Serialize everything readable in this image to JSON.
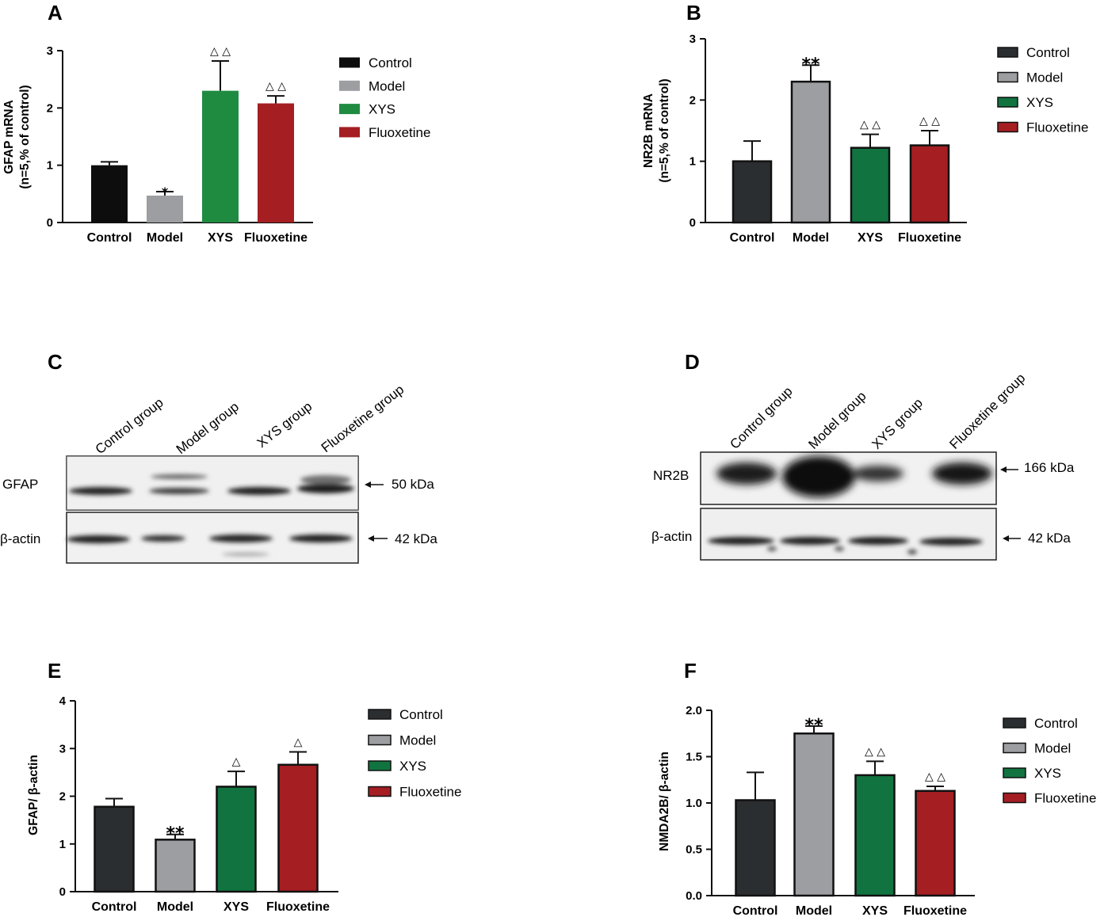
{
  "chart_data": [
    {
      "panel": "A",
      "type": "bar",
      "categories": [
        "Control",
        "Model",
        "XYS",
        "Fluoxetine"
      ],
      "values": [
        1.0,
        0.47,
        2.3,
        2.08
      ],
      "errors": [
        0.06,
        0.07,
        0.52,
        0.13
      ],
      "annotations": [
        "",
        "*",
        "△ △",
        "△ △"
      ],
      "colors": [
        "#0d0d0d",
        "#9d9ea1",
        "#1f8b41",
        "#a51e22"
      ],
      "legend": [
        "Control",
        "Model",
        "XYS",
        "Fluoxetine"
      ],
      "ylabel": [
        "GFAP mRNA",
        "(n=5,% of control)"
      ],
      "ylim": [
        0,
        3
      ],
      "yticks": [
        "0",
        "1",
        "2",
        "3"
      ],
      "yticks_values": [
        0,
        1,
        2,
        3
      ]
    },
    {
      "panel": "B",
      "type": "bar",
      "categories": [
        "Control",
        "Model",
        "XYS",
        "Fluoxetine"
      ],
      "values": [
        1.0,
        2.3,
        1.22,
        1.26
      ],
      "errors": [
        0.33,
        0.27,
        0.22,
        0.24
      ],
      "annotations": [
        "",
        "**",
        "△ △",
        "△ △"
      ],
      "colors": [
        "#2b2e31",
        "#9d9ea1",
        "#117440",
        "#a51e22"
      ],
      "legend": [
        "Control",
        "Model",
        "XYS",
        "Fluoxetine"
      ],
      "ylabel": [
        "NR2B mRNA",
        "(n=5,% of control)"
      ],
      "ylim": [
        0,
        3
      ],
      "yticks": [
        "0",
        "1",
        "2",
        "3"
      ],
      "yticks_values": [
        0,
        1,
        2,
        3
      ]
    },
    {
      "panel": "E",
      "type": "bar",
      "categories": [
        "Control",
        "Model",
        "XYS",
        "Fluoxetine"
      ],
      "values": [
        1.78,
        1.09,
        2.2,
        2.66
      ],
      "errors": [
        0.17,
        0.11,
        0.32,
        0.27
      ],
      "annotations": [
        "",
        "**",
        "△",
        "△"
      ],
      "colors": [
        "#2b2e31",
        "#9d9ea1",
        "#117440",
        "#a51e22"
      ],
      "legend": [
        "Control",
        "Model",
        "XYS",
        "Fluoxetine"
      ],
      "ylabel": [
        "GFAP/ β-actin"
      ],
      "ylim": [
        0,
        4
      ],
      "yticks": [
        "0",
        "1",
        "2",
        "3",
        "4"
      ],
      "yticks_values": [
        0,
        1,
        2,
        3,
        4
      ]
    },
    {
      "panel": "F",
      "type": "bar",
      "categories": [
        "Control",
        "Model",
        "XYS",
        "Fluoxetine"
      ],
      "values": [
        1.03,
        1.75,
        1.3,
        1.13
      ],
      "errors": [
        0.3,
        0.08,
        0.15,
        0.05
      ],
      "annotations": [
        "",
        "**",
        "△ △",
        "△ △"
      ],
      "colors": [
        "#2b2e31",
        "#9d9ea1",
        "#117440",
        "#a51e22"
      ],
      "legend": [
        "Control",
        "Model",
        "XYS",
        "Fluoxetine"
      ],
      "ylabel": [
        "NMDA2B/ β-actin"
      ],
      "ylim": [
        0,
        2.0
      ],
      "yticks": [
        "0.0",
        "0.5",
        "1.0",
        "1.5",
        "2.0"
      ],
      "yticks_values": [
        0,
        0.5,
        1.0,
        1.5,
        2.0
      ]
    }
  ],
  "blots": [
    {
      "panel": "C",
      "lanes": [
        "Control group",
        "Model group",
        "XYS group",
        "Fluoxetine group"
      ],
      "rows": [
        {
          "label": "GFAP",
          "marker": "50 kDa"
        },
        {
          "label": "β-actin",
          "marker": "42 kDa"
        }
      ]
    },
    {
      "panel": "D",
      "lanes": [
        "Control group",
        "Model group",
        "XYS group",
        "Fluoxetine group"
      ],
      "rows": [
        {
          "label": "NR2B",
          "marker": "166 kDa"
        },
        {
          "label": "β-actin",
          "marker": "42 kDa"
        }
      ]
    }
  ]
}
